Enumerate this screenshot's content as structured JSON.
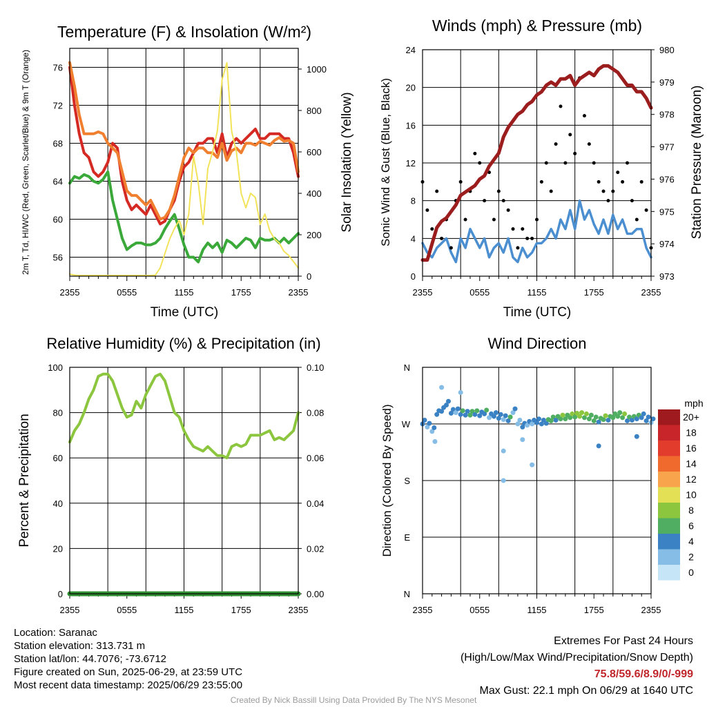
{
  "panels": {
    "temperature": {
      "title": "Temperature (F) & Insolation (W/m²)",
      "ylabel_left": "2m T, Td, HI/WC (Red, Green, Scarlet/Blue) & 9m T (Orange)",
      "ylabel_right": "Solar Insolation (Yellow)",
      "xlabel": "Time (UTC)"
    },
    "winds": {
      "title": "Winds (mph) & Pressure (mb)",
      "ylabel_left": "Sonic Wind & Gust (Blue, Black)",
      "ylabel_right": "Station Pressure (Maroon)",
      "xlabel": "Time (UTC)"
    },
    "humidity": {
      "title": "Relative Humidity (%) & Precipitation (in)",
      "ylabel_left": "Percent & Precipitation"
    },
    "direction": {
      "title": "Wind Direction",
      "ylabel_left": "Direction (Colored By Speed)",
      "legend_title": "mph",
      "legend_labels": [
        "20+",
        "18",
        "16",
        "14",
        "12",
        "10",
        "8",
        "6",
        "4",
        "2",
        "0"
      ],
      "legend_colors": [
        "#9e1a1f",
        "#c7252a",
        "#e23c2c",
        "#f06a2e",
        "#f7a44c",
        "#e4e056",
        "#8cc63e",
        "#4fae62",
        "#3b82c4",
        "#86bde6",
        "#c6e6f8"
      ]
    }
  },
  "info": {
    "location": "Location: Saranac",
    "elevation": "Station elevation: 313.731 m",
    "latlon": "Station lat/lon: 44.7076; -73.6712",
    "created": "Figure created on Sun, 2025-06-29, at 23:59 UTC",
    "recent": "Most recent data timestamp: 2025/06/29 23:55:00",
    "extremes_title": "Extremes For Past 24 Hours",
    "extremes_desc": "(High/Low/Max Wind/Precipitation/Snow Depth)",
    "extremes_values": "75.8/59.6/8.9/0/-999",
    "max_gust": "Max Gust: 22.1 mph On 06/29 at 1640 UTC",
    "credit": "Created By Nick Bassill Using Data Provided By The NYS Mesonet"
  },
  "chart_data": [
    {
      "type": "line",
      "title": "Temperature (F) & Insolation (W/m²)",
      "xlabel": "Time (UTC)",
      "ylabel": "2m T, Td, HI/WC (Red, Green, Scarlet/Blue) & 9m T (Orange)",
      "ylabel_right": "Solar Insolation (Yellow)",
      "x_hours": [
        0,
        0.5,
        1,
        1.5,
        2,
        2.5,
        3,
        3.5,
        4,
        4.5,
        5,
        5.5,
        6,
        6.5,
        7,
        7.5,
        8,
        8.5,
        9,
        9.5,
        10,
        10.5,
        11,
        11.5,
        12,
        12.5,
        13,
        13.5,
        14,
        14.5,
        15,
        15.5,
        16,
        16.5,
        17,
        17.5,
        18,
        18.5,
        19,
        19.5,
        20,
        20.5,
        21,
        21.5,
        22,
        22.5,
        23,
        23.5,
        24
      ],
      "xticks": {
        "positions": [
          0,
          6,
          12,
          18,
          24
        ],
        "labels": [
          "2355",
          "0555",
          "1155",
          "1755",
          "2355"
        ]
      },
      "ylim": [
        54,
        78
      ],
      "yticks": [
        56,
        60,
        64,
        68,
        72,
        76
      ],
      "ylim_right": [
        0,
        1100
      ],
      "yticks_right": [
        0,
        200,
        400,
        600,
        800,
        1000
      ],
      "series": [
        {
          "name": "2m T",
          "color": "#d42a23",
          "axis": "left",
          "values": [
            76,
            72,
            69,
            67,
            66.5,
            65,
            64.5,
            65,
            66,
            68,
            67.5,
            64,
            62,
            61,
            61.5,
            61,
            60.5,
            61.5,
            60.5,
            59.5,
            59.8,
            61,
            62,
            64,
            65.5,
            66,
            67,
            68,
            68,
            68.5,
            68.5,
            67,
            69,
            66.5,
            68,
            68.5,
            68,
            68.5,
            69,
            69.5,
            68.5,
            68.5,
            69,
            69,
            69,
            68.5,
            68.5,
            67,
            64.5
          ]
        },
        {
          "name": "9m T",
          "color": "#f08030",
          "axis": "left",
          "values": [
            76.5,
            74,
            71,
            69,
            69,
            69,
            69.2,
            69,
            68,
            67.5,
            67,
            65,
            63,
            62.5,
            62.5,
            62,
            61.5,
            62,
            61,
            60,
            60.2,
            61,
            62.5,
            64.5,
            66.5,
            67.5,
            67,
            67.5,
            67.5,
            67,
            67,
            66.5,
            68,
            66.2,
            67.2,
            67.5,
            67,
            68,
            68,
            67.8,
            68.2,
            68,
            67.8,
            68.3,
            68.6,
            68.2,
            68.3,
            68,
            65
          ]
        },
        {
          "name": "Td",
          "color": "#3aa93a",
          "axis": "left",
          "values": [
            63.8,
            64.5,
            64.3,
            64.7,
            64.5,
            64,
            63.8,
            64.2,
            65,
            62,
            60,
            58,
            56.8,
            57.2,
            57.5,
            57.5,
            57.3,
            57.3,
            57.5,
            58,
            59,
            59.8,
            60.5,
            59,
            57.3,
            56,
            56,
            55.5,
            56.8,
            57.5,
            57,
            57.5,
            56.5,
            57.8,
            57.5,
            57,
            57.5,
            58,
            57.8,
            57,
            58,
            57.8,
            57.8,
            58,
            57.5,
            58,
            57.5,
            58,
            58.5
          ]
        },
        {
          "name": "Solar Insolation",
          "color": "#f2e35a",
          "axis": "right",
          "values": [
            10,
            5,
            0,
            0,
            0,
            0,
            0,
            0,
            0,
            0,
            0,
            0,
            0,
            0,
            0,
            0,
            0,
            0,
            5,
            40,
            110,
            180,
            230,
            270,
            200,
            300,
            580,
            450,
            250,
            520,
            600,
            700,
            950,
            1030,
            700,
            600,
            400,
            330,
            400,
            380,
            250,
            300,
            220,
            180,
            160,
            120,
            100,
            70,
            40
          ]
        }
      ]
    },
    {
      "type": "line",
      "title": "Winds (mph) & Pressure (mb)",
      "xlabel": "Time (UTC)",
      "ylabel": "Sonic Wind & Gust (Blue, Black)",
      "ylabel_right": "Station Pressure (Maroon)",
      "ylim": [
        0,
        24
      ],
      "yticks": [
        0,
        4,
        8,
        12,
        16,
        20,
        24
      ],
      "ylim_right": [
        973,
        980
      ],
      "yticks_right": [
        973,
        974,
        975,
        976,
        977,
        978,
        979,
        980
      ],
      "x_hours": [
        0,
        0.5,
        1,
        1.5,
        2,
        2.5,
        3,
        3.5,
        4,
        4.5,
        5,
        5.5,
        6,
        6.5,
        7,
        7.5,
        8,
        8.5,
        9,
        9.5,
        10,
        10.5,
        11,
        11.5,
        12,
        12.5,
        13,
        13.5,
        14,
        14.5,
        15,
        15.5,
        16,
        16.5,
        17,
        17.5,
        18,
        18.5,
        19,
        19.5,
        20,
        20.5,
        21,
        21.5,
        22,
        22.5,
        23,
        23.5,
        24
      ],
      "series": [
        {
          "name": "Sonic Wind",
          "color": "#4b8fd0",
          "axis": "left",
          "values": [
            3.5,
            2.5,
            2,
            3,
            3.5,
            4,
            2.5,
            1.5,
            4,
            3,
            5,
            4,
            3,
            4,
            2,
            3,
            3.5,
            2.5,
            4,
            2,
            1.5,
            3,
            2,
            2.5,
            3.5,
            3.5,
            4,
            5,
            4,
            6,
            5,
            7,
            5,
            8,
            6,
            7,
            5.5,
            4.5,
            6,
            4.5,
            6.5,
            5,
            6,
            4.5,
            4.5,
            5,
            5,
            3,
            2
          ]
        },
        {
          "name": "Gust",
          "color": "#000000",
          "axis": "left",
          "marker": "dot",
          "values": [
            10,
            7,
            5,
            9,
            4,
            6,
            3,
            8,
            10,
            6,
            9,
            13,
            12,
            8,
            11,
            6,
            9,
            8,
            7,
            5,
            3,
            5,
            4,
            4,
            6,
            10,
            12,
            9,
            14,
            18,
            12,
            15,
            13,
            21,
            17,
            14,
            12,
            10,
            9,
            8,
            9,
            11,
            10,
            12,
            8,
            6,
            10,
            7,
            3
          ]
        },
        {
          "name": "Station Pressure",
          "color": "#9b1d1d",
          "axis": "right",
          "values": [
            973.5,
            973.5,
            974,
            974.5,
            974.7,
            974.8,
            975,
            975.2,
            975.5,
            975.6,
            975.7,
            975.8,
            976,
            976.1,
            976.4,
            976.6,
            976.8,
            977.3,
            977.6,
            977.8,
            978,
            978.1,
            978.3,
            978.4,
            978.6,
            978.7,
            978.9,
            979,
            978.9,
            979.1,
            979.1,
            979.2,
            978.9,
            979.1,
            979.2,
            979.3,
            979.2,
            979.4,
            979.5,
            979.5,
            979.4,
            979.3,
            979.1,
            978.9,
            978.9,
            978.7,
            978.7,
            978.5,
            978.2
          ]
        }
      ]
    },
    {
      "type": "line",
      "title": "Relative Humidity (%) & Precipitation (in)",
      "ylabel": "Percent & Precipitation",
      "ylim": [
        0,
        100
      ],
      "yticks": [
        0,
        20,
        40,
        60,
        80,
        100
      ],
      "ylim_right": [
        0,
        0.1
      ],
      "yticks_right_labels": [
        "0.00",
        "0.02",
        "0.04",
        "0.06",
        "0.08",
        "0.10"
      ],
      "x_hours": [
        0,
        0.5,
        1,
        1.5,
        2,
        2.5,
        3,
        3.5,
        4,
        4.5,
        5,
        5.5,
        6,
        6.5,
        7,
        7.5,
        8,
        8.5,
        9,
        9.5,
        10,
        10.5,
        11,
        11.5,
        12,
        12.5,
        13,
        13.5,
        14,
        14.5,
        15,
        15.5,
        16,
        16.5,
        17,
        17.5,
        18,
        18.5,
        19,
        19.5,
        20,
        20.5,
        21,
        21.5,
        22,
        22.5,
        23,
        23.5,
        24
      ],
      "series": [
        {
          "name": "Relative Humidity",
          "color": "#8cc63e",
          "axis": "left",
          "values": [
            67,
            72,
            75,
            80,
            86,
            90,
            96,
            97,
            97,
            94,
            88,
            82,
            78,
            79,
            85,
            82,
            88,
            92,
            96,
            97,
            94,
            87,
            80,
            78,
            72,
            68,
            65,
            64,
            63,
            65,
            63,
            61,
            61,
            60,
            65,
            66,
            65,
            66,
            70,
            70,
            70,
            71,
            72,
            68,
            69,
            68,
            70,
            72,
            80
          ]
        },
        {
          "name": "Precipitation",
          "color": "#2f8f32",
          "axis": "right",
          "values": [
            0,
            0,
            0,
            0,
            0,
            0,
            0,
            0,
            0,
            0,
            0,
            0,
            0,
            0,
            0,
            0,
            0,
            0,
            0,
            0,
            0,
            0,
            0,
            0,
            0,
            0,
            0,
            0,
            0,
            0,
            0,
            0,
            0,
            0,
            0,
            0,
            0,
            0,
            0,
            0,
            0,
            0,
            0,
            0,
            0,
            0,
            0,
            0,
            0
          ]
        }
      ]
    },
    {
      "type": "scatter",
      "title": "Wind Direction",
      "ylabel": "Direction (Colored By Speed)",
      "yticks": {
        "degrees": [
          0,
          90,
          180,
          270,
          360
        ],
        "labels": [
          "N",
          "E",
          "S",
          "W",
          "N"
        ]
      },
      "x_hours": [
        0,
        0.5,
        1,
        1.5,
        2,
        2.5,
        3,
        3.5,
        4,
        4.5,
        5,
        5.5,
        6,
        6.5,
        7,
        7.5,
        8,
        8.5,
        9,
        9.5,
        10,
        10.5,
        11,
        11.5,
        12,
        12.5,
        13,
        13.5,
        14,
        14.5,
        15,
        15.5,
        16,
        16.5,
        17,
        17.5,
        18,
        18.5,
        19,
        19.5,
        20,
        20.5,
        21,
        21.5,
        22,
        22.5,
        23,
        23.5,
        24
      ],
      "direction_deg": [
        270,
        265,
        258,
        285,
        290,
        300,
        287,
        288,
        285,
        284,
        284,
        285,
        283,
        286,
        280,
        282,
        279,
        277,
        275,
        288,
        270,
        265,
        268,
        270,
        272,
        270,
        271,
        275,
        276,
        278,
        278,
        280,
        281,
        282,
        280,
        278,
        275,
        273,
        277,
        276,
        280,
        282,
        280,
        275,
        276,
        278,
        280,
        275,
        272
      ],
      "speed_mph": [
        3,
        2,
        2,
        3,
        3,
        3,
        3,
        2,
        4,
        3,
        5,
        4,
        3,
        4,
        2,
        3,
        3,
        2,
        4,
        2,
        1,
        3,
        2,
        2,
        3,
        3,
        4,
        5,
        4,
        6,
        5,
        6,
        6,
        7,
        6,
        5,
        5,
        4,
        6,
        4,
        5,
        5,
        6,
        4,
        4,
        4,
        3,
        3,
        2
      ],
      "outliers": [
        {
          "hour": 8.5,
          "deg": 180,
          "speed": 1
        },
        {
          "hour": 11.5,
          "deg": 205,
          "speed": 1
        },
        {
          "hour": 8.5,
          "deg": 227,
          "speed": 1
        },
        {
          "hour": 1.3,
          "deg": 242,
          "speed": 2
        },
        {
          "hour": 18.5,
          "deg": 235,
          "speed": 3
        },
        {
          "hour": 10.5,
          "deg": 245,
          "speed": 2
        },
        {
          "hour": 22.5,
          "deg": 250,
          "speed": 3
        },
        {
          "hour": 2,
          "deg": 328,
          "speed": 1
        },
        {
          "hour": 4,
          "deg": 320,
          "speed": 2
        }
      ]
    }
  ]
}
